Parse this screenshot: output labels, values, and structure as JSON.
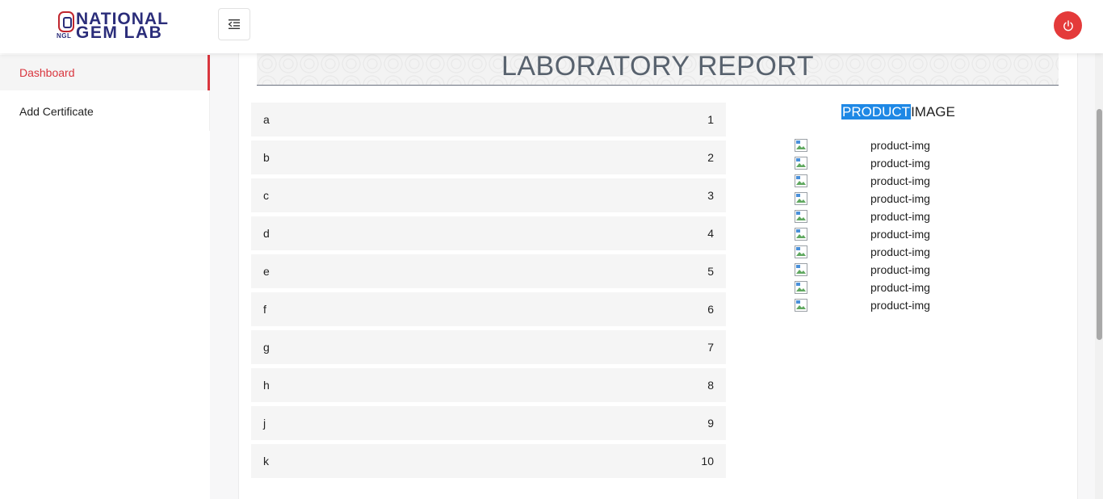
{
  "brand": {
    "logo_abbr": "NGL",
    "logo_line1": "NATIONAL",
    "logo_line2": "GEM LAB"
  },
  "header": {
    "menu_toggle_icon": "menu-collapse-icon",
    "power_icon": "power-icon",
    "accent_color": "#e43a3a"
  },
  "sidebar": {
    "items": [
      {
        "label": "Dashboard",
        "active": true
      },
      {
        "label": "Add Certificate",
        "active": false
      }
    ]
  },
  "report": {
    "title": "LABORATORY REPORT",
    "rows": [
      {
        "label": "a",
        "value": "1"
      },
      {
        "label": "b",
        "value": "2"
      },
      {
        "label": "c",
        "value": "3"
      },
      {
        "label": "d",
        "value": "4"
      },
      {
        "label": "e",
        "value": "5"
      },
      {
        "label": "f",
        "value": "6"
      },
      {
        "label": "g",
        "value": "7"
      },
      {
        "label": "h",
        "value": "8"
      },
      {
        "label": "j",
        "value": "9"
      },
      {
        "label": "k",
        "value": "10"
      }
    ]
  },
  "product": {
    "heading_highlight": "PRODUCT",
    "heading_rest": "IMAGE",
    "images": [
      {
        "alt": "product-img"
      },
      {
        "alt": "product-img"
      },
      {
        "alt": "product-img"
      },
      {
        "alt": "product-img"
      },
      {
        "alt": "product-img"
      },
      {
        "alt": "product-img"
      },
      {
        "alt": "product-img"
      },
      {
        "alt": "product-img"
      },
      {
        "alt": "product-img"
      },
      {
        "alt": "product-img"
      }
    ]
  }
}
